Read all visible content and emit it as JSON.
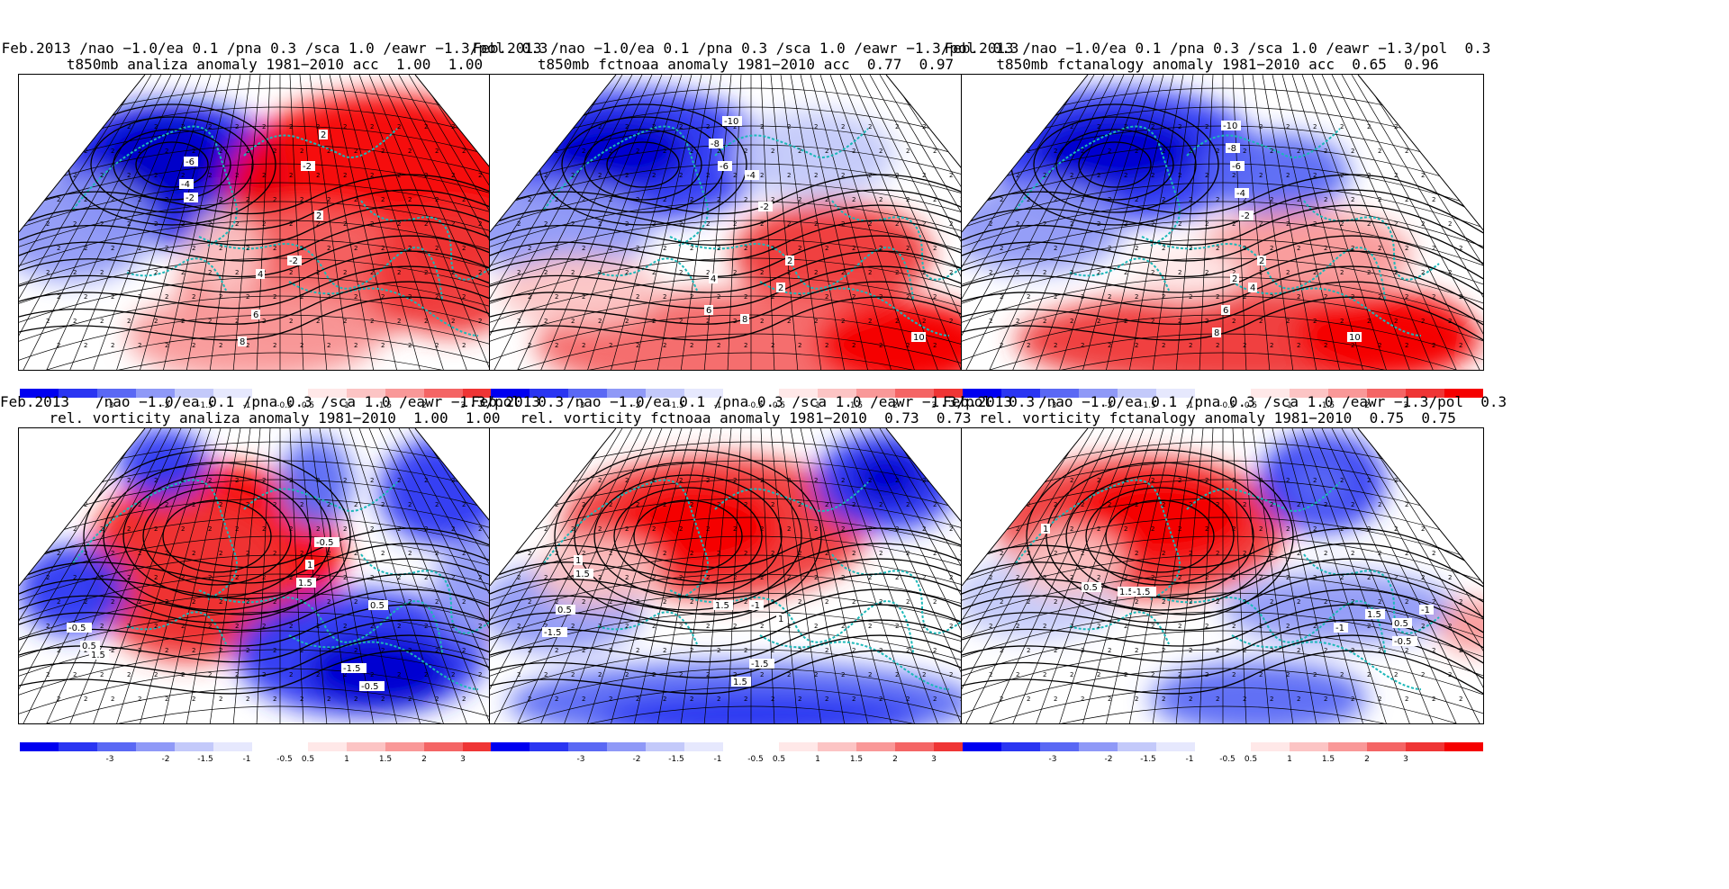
{
  "panels": [
    {
      "line1": "Feb.2013 /nao −1.0/ea 0.1 /pna 0.3 /sca 1.0 /eawr −1.3/pol  0.3",
      "line2": "t850mb analiza anomaly 1981−2010 acc  1.00  1.00",
      "kind": "t850",
      "variant": "analiza",
      "accent": "#d8e4ee",
      "contour_labels": [
        "-6",
        "-4",
        "-2",
        "2",
        "-2",
        "2",
        "-2",
        "4",
        "6",
        "8"
      ]
    },
    {
      "line1": "Feb.2013 /nao −1.0/ea 0.1 /pna 0.3 /sca 1.0 /eawr −1.3/pol  0.3",
      "line2": "t850mb fctnoaa anomaly 1981−2010 acc  0.77  0.97",
      "kind": "t850",
      "variant": "fctnoaa",
      "contour_labels": [
        "-10",
        "-8",
        "-6",
        "-4",
        "-2",
        "2",
        "2",
        "4",
        "6",
        "8",
        "10"
      ]
    },
    {
      "line1": "Feb.2013 /nao −1.0/ea 0.1 /pna 0.3 /sca 1.0 /eawr −1.3/pol  0.3",
      "line2": "t850mb fctanalogy anomaly 1981−2010 acc  0.65  0.96",
      "kind": "t850",
      "variant": "fctanalogy",
      "contour_labels": [
        "-10",
        "-8",
        "-6",
        "-4",
        "-2",
        "2",
        "2",
        "4",
        "6",
        "8",
        "10"
      ]
    },
    {
      "line1": "Feb.2013   /nao −1.0/ea 0.1 /pna 0.3 /sca 1.0 /eawr −1.3/pol  0.3",
      "line2": "rel. vorticity analiza anomaly 1981−2010  1.00  1.00",
      "kind": "vort",
      "variant": "analiza",
      "contour_labels": [
        "-0.5",
        "0.5",
        "1.5",
        "-0.5",
        "1",
        "1.5",
        "0.5",
        "-1.5",
        "-0.5"
      ]
    },
    {
      "line1": "Feb.2013   /nao −1.0/ea 0.1 /pna 0.3 /sca 1.0 /eawr −1.3/pol  0.3",
      "line2": "rel. vorticity fctnoaa anomaly 1981−2010  0.73  0.73",
      "kind": "vort",
      "variant": "fctnoaa",
      "contour_labels": [
        "1",
        "1.5",
        "0.5",
        "-1.5",
        "1.5",
        "1",
        "-1",
        "-1.5",
        "1.5"
      ]
    },
    {
      "line1": "Feb.2013   /nao −1.0/ea 0.1 /pna 0.3 /sca 1.0 /eawr −1.3/pol  0.3",
      "line2": "rel. vorticity fctanalogy anomaly 1981−2010  0.75  0.75",
      "kind": "vort",
      "variant": "fctanalogy",
      "contour_labels": [
        "1",
        "0.5",
        "1.5",
        "-1.5",
        "-1",
        "1.5",
        "0.5",
        "-1",
        "-0.5"
      ]
    }
  ],
  "colorbar": {
    "ticks_neg": [
      "-3",
      "-2",
      "-1.5",
      "-1",
      "-0.5"
    ],
    "ticks_pos": [
      "0.5",
      "1",
      "1.5",
      "2",
      "3"
    ],
    "colors_neg": [
      "#0000f0",
      "#2a35f2",
      "#5a68f4",
      "#8f99f7",
      "#c3c9fa",
      "#e6e8fd"
    ],
    "colors_pos": [
      "#ffe8e8",
      "#fcc4c4",
      "#f99898",
      "#f46565",
      "#ef3535",
      "#f50000"
    ]
  }
}
